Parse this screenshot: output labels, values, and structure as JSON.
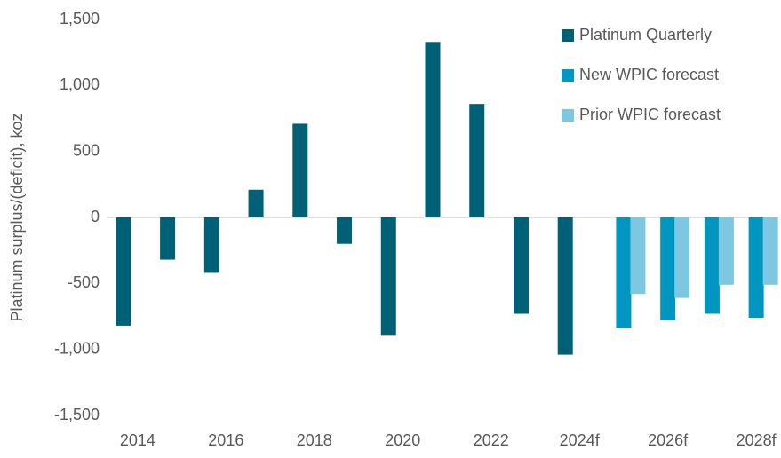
{
  "chart_data": {
    "type": "bar",
    "y_label": "Platinum surplus/(deficit), koz",
    "categories": [
      "2014",
      null,
      "2016",
      null,
      "2018",
      null,
      "2020",
      null,
      "2022",
      null,
      "2024f",
      null,
      "2026f",
      null,
      "2028f"
    ],
    "series": [
      {
        "name": "Platinum Quarterly",
        "color": "#006075",
        "values": [
          -820,
          -320,
          -420,
          210,
          710,
          -200,
          -890,
          1330,
          860,
          -730,
          -1040,
          null,
          null,
          null,
          null
        ]
      },
      {
        "name": "New WPIC forecast",
        "color": "#0096bf",
        "values": [
          null,
          null,
          null,
          null,
          null,
          null,
          null,
          null,
          null,
          null,
          null,
          -840,
          -780,
          -730,
          -760
        ]
      },
      {
        "name": "Prior WPIC forecast",
        "color": "#7dc8e0",
        "values": [
          null,
          null,
          null,
          null,
          null,
          null,
          null,
          null,
          null,
          null,
          null,
          -580,
          -610,
          -510,
          -510
        ]
      }
    ],
    "ylim": [
      -1500,
      1500
    ],
    "yticks": [
      {
        "value": -1500,
        "label": "-1,500"
      },
      {
        "value": -1000,
        "label": "-1,000"
      },
      -500,
      0,
      500,
      {
        "value": 1000,
        "label": "1,000"
      },
      {
        "value": 1500,
        "label": "1,500"
      }
    ],
    "grid": false,
    "legend": "top-right"
  }
}
